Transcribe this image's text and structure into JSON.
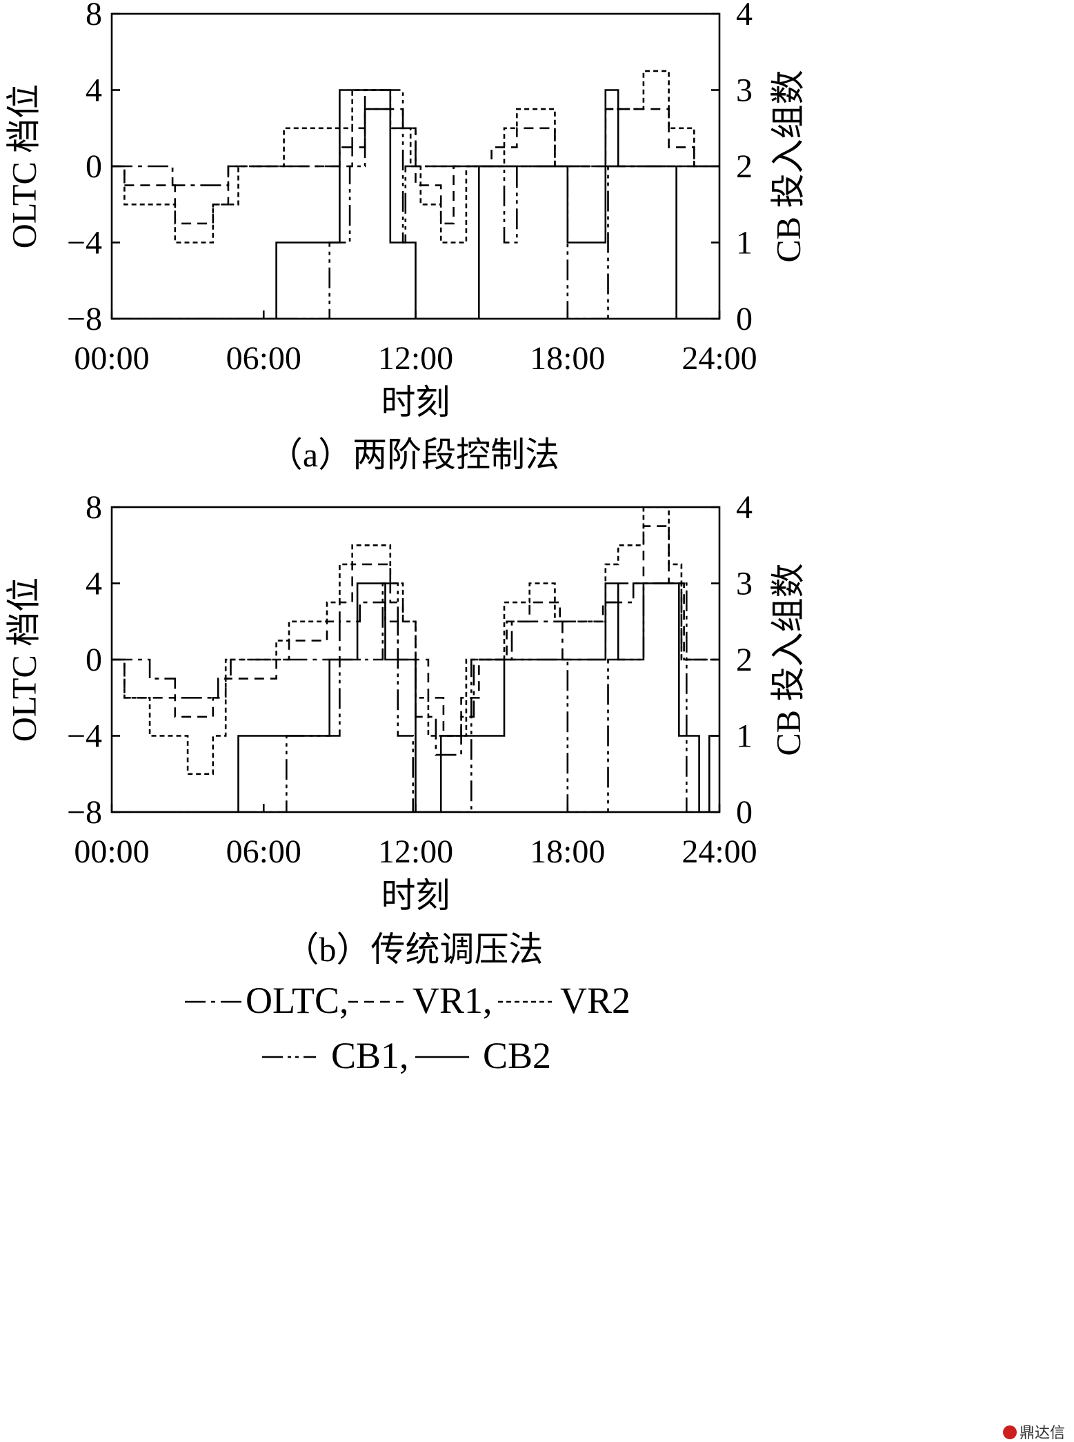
{
  "chart_data": [
    {
      "type": "line",
      "caption": "（a）两阶段控制法",
      "xlabel": "时刻",
      "ylabel_left": "OLTC 档位",
      "ylabel_right": "CB 投入组数",
      "xlim": [
        0,
        24
      ],
      "ylim_left": [
        -8,
        8
      ],
      "ylim_right": [
        0,
        4
      ],
      "xticks": [
        "00:00",
        "06:00",
        "12:00",
        "18:00",
        "24:00"
      ],
      "yticks_left": [
        "−8",
        "−4",
        "0",
        "4",
        "8"
      ],
      "yticks_right": [
        "0",
        "1",
        "2",
        "3",
        "4"
      ],
      "series": [
        {
          "name": "OLTC",
          "axis": "left",
          "x": [
            0,
            2.4,
            2.4,
            4.6,
            4.6,
            9,
            9,
            9.5,
            9.5,
            10,
            10,
            11,
            11,
            12,
            12,
            24
          ],
          "y": [
            0,
            0,
            -1,
            -1,
            0,
            0,
            1,
            1,
            2,
            2,
            3,
            3,
            2,
            2,
            0,
            0
          ]
        },
        {
          "name": "VR1",
          "axis": "left",
          "x": [
            0,
            0.5,
            0.5,
            1.5,
            1.5,
            2.5,
            2.5,
            4,
            4,
            4.6,
            4.6,
            6.6,
            6.6,
            9.5,
            9.5,
            10,
            10,
            11.5,
            11.5,
            12,
            12,
            13,
            13,
            13.5,
            13.5,
            15,
            15,
            16,
            16,
            17.5,
            17.5,
            19.5,
            19.5,
            21,
            21,
            22,
            22,
            23,
            23,
            24
          ],
          "y": [
            0,
            0,
            -1,
            -1,
            -1,
            -1,
            -3,
            -3,
            -2,
            -2,
            0,
            0,
            0,
            0,
            1,
            1,
            3,
            3,
            2,
            2,
            -1,
            -1,
            -3,
            -3,
            0,
            0,
            1,
            1,
            2,
            2,
            0,
            0,
            3,
            3,
            3,
            3,
            1,
            1,
            0,
            0
          ]
        },
        {
          "name": "VR2",
          "axis": "left",
          "x": [
            0,
            0.5,
            0.5,
            2.5,
            2.5,
            4,
            4,
            5,
            5,
            6.8,
            6.8,
            9.3,
            9.3,
            9.5,
            9.5,
            11,
            11,
            11.8,
            11.8,
            12.2,
            12.2,
            13,
            13,
            14,
            14,
            15.5,
            15.5,
            16,
            16,
            17.5,
            17.5,
            19.5,
            19.5,
            21,
            21,
            22,
            22,
            23,
            23,
            24
          ],
          "y": [
            0,
            0,
            -2,
            -2,
            -4,
            -4,
            -2,
            -2,
            0,
            0,
            2,
            2,
            2,
            2,
            4,
            4,
            2,
            2,
            0,
            0,
            -2,
            -2,
            -4,
            -4,
            0,
            0,
            2,
            2,
            3,
            3,
            0,
            0,
            3,
            3,
            5,
            5,
            2,
            2,
            0,
            0
          ]
        },
        {
          "name": "CB1",
          "axis": "right",
          "x": [
            0,
            8.6,
            8.6,
            9.4,
            9.4,
            10,
            10,
            11.5,
            11.5,
            11.6,
            11.6,
            15.5,
            15.5,
            16,
            16,
            18,
            18,
            19.6,
            19.6,
            24
          ],
          "y": [
            0,
            0,
            1,
            1,
            2,
            2,
            3,
            3,
            1,
            1,
            2,
            2,
            1,
            1,
            2,
            2,
            0,
            0,
            2,
            2
          ]
        },
        {
          "name": "CB2",
          "axis": "right",
          "x": [
            0,
            6.5,
            6.5,
            9,
            9,
            11,
            11,
            12,
            12,
            14.5,
            14.5,
            18,
            18,
            19.5,
            19.5,
            20,
            20,
            22.3,
            22.3,
            24
          ],
          "y": [
            0,
            0,
            1,
            1,
            3,
            3,
            1,
            1,
            0,
            0,
            2,
            2,
            1,
            1,
            3,
            3,
            2,
            2,
            0,
            0
          ]
        }
      ]
    },
    {
      "type": "line",
      "caption": "（b）传统调压法",
      "xlabel": "时刻",
      "ylabel_left": "OLTC 档位",
      "ylabel_right": "CB 投入组数",
      "xlim": [
        0,
        24
      ],
      "ylim_left": [
        -8,
        8
      ],
      "ylim_right": [
        0,
        4
      ],
      "xticks": [
        "00:00",
        "06:00",
        "12:00",
        "18:00",
        "24:00"
      ],
      "yticks_left": [
        "−8",
        "−4",
        "0",
        "4",
        "8"
      ],
      "yticks_right": [
        "0",
        "1",
        "2",
        "3",
        "4"
      ],
      "series": [
        {
          "name": "OLTC",
          "axis": "left",
          "x": [
            0,
            1.5,
            1.5,
            2.5,
            2.5,
            4.2,
            4.2,
            4.7,
            4.7,
            9,
            9,
            9.8,
            9.8,
            10.8,
            10.8,
            11.3,
            11.3,
            12,
            12,
            12.8,
            12.8,
            13.8,
            13.8,
            14.3,
            14.3,
            15.8,
            15.8,
            16.6,
            16.6,
            17.8,
            17.8,
            19.5,
            19.5,
            20.6,
            20.6,
            22.5,
            22.5,
            24
          ],
          "y": [
            0,
            0,
            -1,
            -1,
            -2,
            -2,
            -1,
            -1,
            0,
            0,
            2,
            2,
            3,
            3,
            2,
            2,
            0,
            0,
            -3,
            -3,
            -5,
            -5,
            -3,
            -3,
            0,
            0,
            2,
            2,
            2,
            2,
            0,
            0,
            3,
            3,
            4,
            4,
            0,
            0
          ]
        },
        {
          "name": "VR1",
          "axis": "left",
          "x": [
            0,
            0.5,
            0.5,
            1.5,
            1.5,
            2.5,
            2.5,
            4,
            4,
            4.5,
            4.5,
            6.5,
            6.5,
            7,
            7,
            8.5,
            8.5,
            9,
            9,
            9.5,
            9.5,
            10,
            10,
            11,
            11,
            11.5,
            11.5,
            12,
            12,
            12.5,
            12.5,
            13.1,
            13.1,
            13.8,
            13.8,
            14.5,
            14.5,
            15.6,
            15.6,
            16.5,
            16.5,
            17.7,
            17.7,
            19.4,
            19.4,
            20,
            20,
            21,
            21,
            22,
            22,
            22.6,
            22.6,
            24
          ],
          "y": [
            0,
            0,
            -2,
            -2,
            -2,
            -2,
            -3,
            -3,
            -2,
            -2,
            -1,
            -1,
            0,
            0,
            1,
            1,
            2,
            2,
            3,
            3,
            5,
            5,
            5,
            5,
            3,
            3,
            2,
            2,
            0,
            0,
            -2,
            -2,
            -4,
            -4,
            -2,
            -2,
            0,
            0,
            2,
            2,
            3,
            3,
            2,
            2,
            3,
            3,
            4,
            4,
            7,
            7,
            4,
            4,
            0,
            0
          ]
        },
        {
          "name": "VR2",
          "axis": "left",
          "x": [
            0,
            0.5,
            0.5,
            1.5,
            1.5,
            3,
            3,
            4,
            4,
            4.5,
            4.5,
            6,
            6,
            6.5,
            6.5,
            7,
            7,
            8.5,
            8.5,
            9,
            9,
            9.5,
            9.5,
            10,
            10,
            11,
            11,
            11.5,
            11.5,
            12,
            12,
            12.5,
            12.5,
            13,
            13,
            14,
            14,
            15.5,
            15.5,
            16,
            16,
            16.5,
            16.5,
            17.5,
            17.5,
            19.5,
            19.5,
            20,
            20,
            21,
            21,
            22,
            22,
            22.5,
            22.5,
            24
          ],
          "y": [
            0,
            0,
            -2,
            -2,
            -4,
            -4,
            -6,
            -6,
            -4,
            -4,
            0,
            0,
            0,
            0,
            1,
            1,
            2,
            2,
            3,
            3,
            5,
            5,
            6,
            6,
            6,
            6,
            4,
            4,
            2,
            2,
            -2,
            -2,
            -4,
            -4,
            -4,
            -4,
            0,
            0,
            3,
            3,
            3,
            3,
            4,
            4,
            2,
            2,
            5,
            5,
            6,
            6,
            8,
            8,
            5,
            5,
            0,
            0
          ]
        },
        {
          "name": "CB1",
          "axis": "right",
          "x": [
            0,
            6.9,
            6.9,
            9,
            9,
            10.7,
            10.7,
            11,
            11,
            11.3,
            11.3,
            11.9,
            11.9,
            12.5,
            12.5,
            13.6,
            13.6,
            14.2,
            14.2,
            18,
            18,
            19.6,
            19.6,
            21,
            21,
            22.7,
            22.7,
            23.6,
            23.6,
            24
          ],
          "y": [
            0,
            0,
            1,
            1,
            2,
            2,
            3,
            3,
            3,
            3,
            1,
            1,
            0,
            0,
            0,
            0,
            0,
            0,
            2,
            2,
            0,
            0,
            2,
            2,
            3,
            3,
            0,
            0,
            0,
            0
          ]
        },
        {
          "name": "CB2",
          "axis": "right",
          "x": [
            0,
            5,
            5,
            8.6,
            8.6,
            9.7,
            9.7,
            10.3,
            10.3,
            10.8,
            10.8,
            12,
            12,
            13,
            13,
            14,
            14,
            15.5,
            15.5,
            18,
            18,
            19.5,
            19.5,
            20,
            20,
            21,
            21,
            22.4,
            22.4,
            23.2,
            23.2,
            23.6,
            23.6,
            24
          ],
          "y": [
            0,
            0,
            1,
            1,
            2,
            2,
            3,
            3,
            3,
            3,
            2,
            2,
            0,
            0,
            1,
            1,
            1,
            1,
            2,
            2,
            2,
            2,
            3,
            3,
            2,
            2,
            3,
            3,
            1,
            1,
            0,
            0,
            1,
            1
          ]
        }
      ]
    }
  ],
  "legend": {
    "row1": [
      "OLTC,",
      "VR1,",
      "VR2"
    ],
    "row2": [
      "CB1,",
      "CB2"
    ]
  },
  "styles": {
    "OLTC": "30 8 6 8",
    "VR1": "14 9",
    "VR2": "7 5",
    "CB1": "30 7 5 6 5 7",
    "CB2": "none"
  },
  "watermark": "鼎达信"
}
